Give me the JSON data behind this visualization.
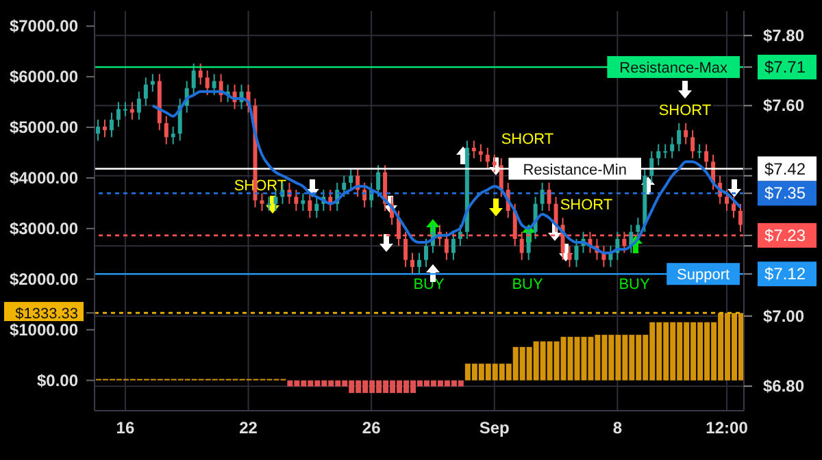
{
  "chart_data": {
    "type": "candlestick",
    "categories": [
      null,
      null,
      null,
      null,
      "16",
      null,
      null,
      null,
      null,
      null,
      null,
      null,
      null,
      null,
      null,
      null,
      null,
      null,
      null,
      null,
      null,
      null,
      "22",
      null,
      null,
      null,
      null,
      null,
      null,
      null,
      null,
      null,
      null,
      null,
      null,
      null,
      null,
      null,
      null,
      null,
      "26",
      null,
      null,
      null,
      null,
      null,
      null,
      null,
      null,
      null,
      null,
      null,
      null,
      null,
      null,
      null,
      null,
      null,
      "Sep",
      null,
      null,
      null,
      null,
      null,
      null,
      null,
      null,
      null,
      null,
      null,
      null,
      null,
      null,
      null,
      null,
      null,
      "8",
      null,
      null,
      null,
      null,
      null,
      null,
      null,
      null,
      null,
      null,
      null,
      null,
      null,
      null,
      null,
      "12:00",
      null,
      null
    ],
    "series": [
      {
        "type": "bar",
        "axis": "y",
        "colors": [
          "#d4940a",
          "#d4940a",
          "#d4940a",
          "#d4940a",
          "#d4940a",
          "#d4940a",
          "#d4940a",
          "#d4940a",
          "#d4940a",
          "#d4940a",
          "#d4940a",
          "#d4940a",
          "#d4940a",
          "#d4940a",
          "#d4940a",
          "#d4940a",
          "#d4940a",
          "#d4940a",
          "#d4940a",
          "#d4940a",
          "#d4940a",
          "#d4940a",
          "#d4940a",
          "#d4940a",
          "#d4940a",
          "#d4940a",
          "#d4940a",
          "#d4940a",
          "#e05252",
          "#e05252",
          "#e05252",
          "#e05252",
          "#e05252",
          "#e05252",
          "#e05252",
          "#e05252",
          "#e05252",
          "#e05252",
          "#e05252",
          "#e05252",
          "#e05252",
          "#e05252",
          "#e05252",
          "#e05252",
          "#e05252",
          "#e05252",
          "#e05252",
          "#e05252",
          "#e05252",
          "#e05252",
          "#e05252",
          "#e05252",
          "#e05252",
          "#e05252",
          "#d4940a",
          "#d4940a",
          "#d4940a",
          "#d4940a",
          "#d4940a",
          "#d4940a",
          "#d4940a",
          "#d4940a",
          "#d4940a",
          "#d4940a",
          "#d4940a",
          "#d4940a",
          "#d4940a",
          "#d4940a",
          "#d4940a",
          "#d4940a",
          "#d4940a",
          "#d4940a",
          "#d4940a",
          "#d4940a",
          "#d4940a",
          "#d4940a",
          "#d4940a",
          "#d4940a",
          "#d4940a",
          "#d4940a",
          "#d4940a",
          "#d4940a",
          "#d4940a",
          "#d4940a",
          "#d4940a",
          "#d4940a",
          "#d4940a",
          "#d4940a",
          "#d4940a",
          "#d4940a",
          "#d4940a",
          "#d4940a",
          "#d4940a",
          "#d4940a",
          "#d4940a"
        ],
        "values": [
          0,
          0,
          0,
          0,
          0,
          0,
          0,
          0,
          0,
          0,
          0,
          0,
          0,
          0,
          0,
          0,
          0,
          0,
          0,
          0,
          0,
          0,
          0,
          0,
          0,
          0,
          0,
          0,
          -120,
          -120,
          -120,
          -120,
          -120,
          -120,
          -120,
          -120,
          -120,
          -250,
          -250,
          -250,
          -250,
          -250,
          -250,
          -250,
          -250,
          -250,
          -250,
          -120,
          -120,
          -120,
          -120,
          -120,
          -120,
          -120,
          330,
          330,
          330,
          330,
          330,
          330,
          330,
          660,
          660,
          660,
          770,
          770,
          770,
          770,
          860,
          860,
          860,
          860,
          860,
          900,
          900,
          900,
          900,
          900,
          900,
          900,
          900,
          1150,
          1150,
          1150,
          1150,
          1150,
          1150,
          1150,
          1150,
          1150,
          1150,
          1330,
          1330,
          1330,
          1330
        ]
      },
      {
        "type": "line",
        "axis": "y2",
        "color": "#1e6fd9",
        "values": [
          null,
          null,
          null,
          null,
          null,
          null,
          null,
          null,
          7.6,
          7.59,
          7.58,
          7.57,
          7.59,
          7.62,
          7.63,
          7.64,
          7.64,
          7.64,
          7.64,
          7.63,
          7.62,
          7.62,
          7.61,
          7.52,
          7.46,
          7.43,
          7.41,
          7.4,
          7.39,
          7.38,
          7.37,
          7.35,
          7.34,
          7.33,
          7.32,
          7.33,
          7.35,
          7.36,
          7.37,
          7.37,
          7.36,
          7.35,
          7.33,
          7.31,
          7.28,
          7.25,
          7.22,
          7.21,
          7.21,
          7.22,
          7.23,
          7.23,
          7.24,
          7.25,
          7.3,
          7.33,
          7.35,
          7.36,
          7.37,
          7.36,
          7.33,
          7.3,
          7.26,
          7.25,
          7.27,
          7.29,
          7.28,
          7.26,
          7.24,
          7.22,
          7.21,
          7.21,
          7.2,
          7.19,
          7.18,
          7.18,
          7.19,
          7.19,
          7.2,
          7.22,
          7.26,
          7.3,
          7.34,
          7.37,
          7.4,
          7.42,
          7.44,
          7.44,
          7.43,
          7.41,
          7.38,
          7.36,
          7.35,
          7.33,
          7.31
        ]
      },
      {
        "type": "candlestick",
        "axis": "y2",
        "colors": [
          "#26a69a",
          "#ef5350",
          "#26a69a",
          "#26a69a",
          "#26a69a",
          "#ef5350",
          "#26a69a",
          "#26a69a",
          "#26a69a",
          "#ef5350",
          "#ef5350",
          "#26a69a",
          "#26a69a",
          "#26a69a",
          "#26a69a",
          "#ef5350",
          "#ef5350",
          "#26a69a",
          "#ef5350",
          "#26a69a",
          "#ef5350",
          "#26a69a",
          "#ef5350",
          "#ef5350",
          "#ef5350",
          "#26a69a",
          "#26a69a",
          "#26a69a",
          "#ef5350",
          "#ef5350",
          "#26a69a",
          "#ef5350",
          "#26a69a",
          "#26a69a",
          "#ef5350",
          "#26a69a",
          "#26a69a",
          "#26a69a",
          "#ef5350",
          "#ef5350",
          "#26a69a",
          "#26a69a",
          "#ef5350",
          "#ef5350",
          "#ef5350",
          "#ef5350",
          "#ef5350",
          "#26a69a",
          "#26a69a",
          "#26a69a",
          "#ef5350",
          "#ef5350",
          "#26a69a",
          "#26a69a",
          "#26a69a",
          "#ef5350",
          "#ef5350",
          "#ef5350",
          "#ef5350",
          "#ef5350",
          "#ef5350",
          "#ef5350",
          "#ef5350",
          "#26a69a",
          "#26a69a",
          "#26a69a",
          "#ef5350",
          "#ef5350",
          "#ef5350",
          "#ef5350",
          "#26a69a",
          "#26a69a",
          "#ef5350",
          "#ef5350",
          "#ef5350",
          "#26a69a",
          "#26a69a",
          "#ef5350",
          "#26a69a",
          "#26a69a",
          "#26a69a",
          "#26a69a",
          "#26a69a",
          "#26a69a",
          "#26a69a",
          "#26a69a",
          "#ef5350",
          "#ef5350",
          "#26a69a",
          "#ef5350",
          "#ef5350",
          "#ef5350",
          "#ef5350",
          "#ef5350",
          "#ef5350"
        ],
        "ohlc": [
          [
            7.52,
            7.56,
            7.5,
            7.54
          ],
          [
            7.54,
            7.56,
            7.51,
            7.53
          ],
          [
            7.53,
            7.58,
            7.51,
            7.56
          ],
          [
            7.56,
            7.61,
            7.54,
            7.59
          ],
          [
            7.59,
            7.61,
            7.57,
            7.59
          ],
          [
            7.59,
            7.61,
            7.56,
            7.58
          ],
          [
            7.58,
            7.64,
            7.56,
            7.62
          ],
          [
            7.62,
            7.68,
            7.6,
            7.66
          ],
          [
            7.66,
            7.69,
            7.64,
            7.67
          ],
          [
            7.67,
            7.69,
            7.53,
            7.55
          ],
          [
            7.55,
            7.57,
            7.49,
            7.51
          ],
          [
            7.51,
            7.54,
            7.49,
            7.52
          ],
          [
            7.52,
            7.62,
            7.5,
            7.6
          ],
          [
            7.6,
            7.67,
            7.58,
            7.65
          ],
          [
            7.65,
            7.72,
            7.63,
            7.7
          ],
          [
            7.7,
            7.72,
            7.66,
            7.68
          ],
          [
            7.68,
            7.7,
            7.63,
            7.65
          ],
          [
            7.65,
            7.69,
            7.63,
            7.67
          ],
          [
            7.67,
            7.69,
            7.61,
            7.63
          ],
          [
            7.63,
            7.66,
            7.61,
            7.64
          ],
          [
            7.64,
            7.66,
            7.59,
            7.61
          ],
          [
            7.61,
            7.66,
            7.59,
            7.64
          ],
          [
            7.64,
            7.66,
            7.58,
            7.6
          ],
          [
            7.6,
            7.62,
            7.31,
            7.33
          ],
          [
            7.33,
            7.35,
            7.3,
            7.32
          ],
          [
            7.32,
            7.34,
            7.3,
            7.32
          ],
          [
            7.32,
            7.36,
            7.3,
            7.34
          ],
          [
            7.34,
            7.38,
            7.32,
            7.36
          ],
          [
            7.36,
            7.38,
            7.32,
            7.34
          ],
          [
            7.34,
            7.36,
            7.3,
            7.32
          ],
          [
            7.32,
            7.35,
            7.3,
            7.33
          ],
          [
            7.33,
            7.35,
            7.28,
            7.3
          ],
          [
            7.3,
            7.34,
            7.28,
            7.32
          ],
          [
            7.32,
            7.36,
            7.3,
            7.34
          ],
          [
            7.34,
            7.36,
            7.3,
            7.32
          ],
          [
            7.32,
            7.38,
            7.3,
            7.36
          ],
          [
            7.36,
            7.4,
            7.34,
            7.38
          ],
          [
            7.38,
            7.42,
            7.36,
            7.4
          ],
          [
            7.4,
            7.42,
            7.34,
            7.36
          ],
          [
            7.36,
            7.38,
            7.31,
            7.33
          ],
          [
            7.33,
            7.38,
            7.31,
            7.36
          ],
          [
            7.36,
            7.43,
            7.34,
            7.41
          ],
          [
            7.41,
            7.43,
            7.3,
            7.32
          ],
          [
            7.32,
            7.34,
            7.26,
            7.28
          ],
          [
            7.28,
            7.3,
            7.2,
            7.22
          ],
          [
            7.22,
            7.24,
            7.14,
            7.16
          ],
          [
            7.16,
            7.18,
            7.12,
            7.14
          ],
          [
            7.14,
            7.18,
            7.12,
            7.16
          ],
          [
            7.16,
            7.22,
            7.14,
            7.2
          ],
          [
            7.2,
            7.26,
            7.18,
            7.24
          ],
          [
            7.24,
            7.26,
            7.2,
            7.22
          ],
          [
            7.22,
            7.24,
            7.16,
            7.18
          ],
          [
            7.18,
            7.24,
            7.16,
            7.22
          ],
          [
            7.22,
            7.26,
            7.2,
            7.24
          ],
          [
            7.24,
            7.5,
            7.22,
            7.48
          ],
          [
            7.48,
            7.5,
            7.45,
            7.47
          ],
          [
            7.47,
            7.49,
            7.44,
            7.46
          ],
          [
            7.46,
            7.48,
            7.42,
            7.44
          ],
          [
            7.44,
            7.46,
            7.41,
            7.43
          ],
          [
            7.43,
            7.45,
            7.34,
            7.36
          ],
          [
            7.36,
            7.38,
            7.28,
            7.3
          ],
          [
            7.3,
            7.32,
            7.2,
            7.22
          ],
          [
            7.22,
            7.24,
            7.16,
            7.18
          ],
          [
            7.18,
            7.26,
            7.16,
            7.24
          ],
          [
            7.24,
            7.34,
            7.22,
            7.32
          ],
          [
            7.32,
            7.38,
            7.3,
            7.36
          ],
          [
            7.36,
            7.38,
            7.3,
            7.32
          ],
          [
            7.32,
            7.34,
            7.24,
            7.26
          ],
          [
            7.26,
            7.28,
            7.16,
            7.18
          ],
          [
            7.18,
            7.2,
            7.14,
            7.16
          ],
          [
            7.16,
            7.22,
            7.14,
            7.2
          ],
          [
            7.2,
            7.24,
            7.18,
            7.22
          ],
          [
            7.22,
            7.24,
            7.18,
            7.2
          ],
          [
            7.2,
            7.22,
            7.16,
            7.18
          ],
          [
            7.18,
            7.2,
            7.14,
            7.16
          ],
          [
            7.16,
            7.2,
            7.14,
            7.18
          ],
          [
            7.18,
            7.24,
            7.16,
            7.22
          ],
          [
            7.22,
            7.24,
            7.18,
            7.2
          ],
          [
            7.2,
            7.26,
            7.18,
            7.24
          ],
          [
            7.24,
            7.28,
            7.22,
            7.26
          ],
          [
            7.26,
            7.42,
            7.24,
            7.4
          ],
          [
            7.4,
            7.47,
            7.38,
            7.45
          ],
          [
            7.45,
            7.49,
            7.43,
            7.47
          ],
          [
            7.47,
            7.49,
            7.45,
            7.47
          ],
          [
            7.47,
            7.51,
            7.45,
            7.49
          ],
          [
            7.49,
            7.55,
            7.47,
            7.53
          ],
          [
            7.53,
            7.55,
            7.49,
            7.51
          ],
          [
            7.51,
            7.53,
            7.45,
            7.47
          ],
          [
            7.47,
            7.49,
            7.45,
            7.47
          ],
          [
            7.47,
            7.49,
            7.42,
            7.44
          ],
          [
            7.44,
            7.46,
            7.36,
            7.38
          ],
          [
            7.38,
            7.4,
            7.32,
            7.34
          ],
          [
            7.34,
            7.36,
            7.3,
            7.32
          ],
          [
            7.32,
            7.34,
            7.28,
            7.3
          ],
          [
            7.3,
            7.32,
            7.24,
            7.26
          ]
        ]
      }
    ],
    "ylim": [
      -600,
      7300
    ],
    "yticks": [
      {
        "value": 0,
        "label": "$0.00"
      },
      {
        "value": 1000,
        "label": "$1000.00"
      },
      {
        "value": 2000,
        "label": "$2000.00"
      },
      {
        "value": 3000,
        "label": "$3000.00"
      },
      {
        "value": 4000,
        "label": "$4000.00"
      },
      {
        "value": 5000,
        "label": "$5000.00"
      },
      {
        "value": 6000,
        "label": "$6000.00"
      },
      {
        "value": 7000,
        "label": "$7000.00"
      },
      {
        "value": 1333.33,
        "label": "$1333.33"
      }
    ],
    "y2lim": [
      6.73,
      7.87
    ],
    "y2ticks": [
      {
        "value": 6.8,
        "label": "$6.80"
      },
      {
        "value": 7.0,
        "label": "$7.00"
      },
      {
        "value": 7.2,
        "label": null
      },
      {
        "value": 7.4,
        "label": null
      },
      {
        "value": 7.6,
        "label": "$7.60"
      },
      {
        "value": 7.8,
        "label": "$7.80"
      },
      {
        "value": 7.71,
        "label": "$7.71"
      },
      {
        "value": 7.42,
        "label": "$7.42"
      },
      {
        "value": 7.35,
        "label": "$7.35"
      },
      {
        "value": 7.23,
        "label": "$7.23"
      },
      {
        "value": 7.12,
        "label": "$7.12"
      }
    ],
    "ref_lines": [
      {
        "axis": "y2",
        "value": 7.71,
        "label": "Resistance-Max",
        "color": "#00e676",
        "line_style": "solid"
      },
      {
        "axis": "y2",
        "value": 7.42,
        "label": "Resistance-Min",
        "color": "#ffffff",
        "line_style": "solid"
      },
      {
        "axis": "y2",
        "value": 7.35,
        "label": null,
        "color": "#1e6fd9",
        "line_style": "dotted"
      },
      {
        "axis": "y2",
        "value": 7.23,
        "label": null,
        "color": "#ff5252",
        "line_style": "dotted"
      },
      {
        "axis": "y2",
        "value": 7.12,
        "label": "Support",
        "color": "#2196f3",
        "line_style": "solid"
      },
      {
        "axis": "y",
        "value": 1333.33,
        "label": null,
        "color": "#f0b400",
        "line_style": "dotted"
      }
    ],
    "annotations": [
      "SHORT",
      "BUY",
      "SHORT",
      "BUY",
      "SHORT",
      "BUY",
      "SHORT"
    ],
    "grid": true,
    "legend": false
  }
}
